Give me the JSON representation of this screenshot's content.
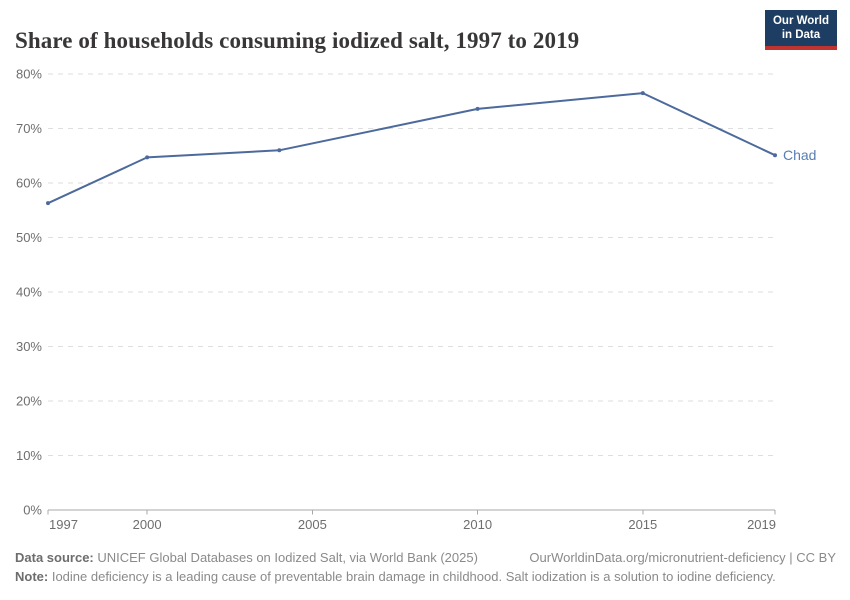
{
  "header": {
    "title": "Share of households consuming iodized salt, 1997 to 2019",
    "logo": {
      "line1": "Our World",
      "line2": "in Data"
    }
  },
  "chart_data": {
    "type": "line",
    "title": "Share of households consuming iodized salt, 1997 to 2019",
    "series": [
      {
        "name": "Chad",
        "x": [
          1997,
          2000,
          2004,
          2010,
          2015,
          2019
        ],
        "values": [
          56.3,
          64.7,
          66.0,
          73.6,
          76.5,
          65.1
        ]
      }
    ],
    "unit": "%",
    "xlim": [
      1997,
      2019
    ],
    "ylim": [
      0,
      80
    ],
    "yticks": [
      0,
      10,
      20,
      30,
      40,
      50,
      60,
      70,
      80
    ],
    "xticks": [
      1997,
      2000,
      2005,
      2010,
      2015,
      2019
    ],
    "grid": true,
    "legend_position": "end-of-line-label",
    "colors": {
      "line": "#4c6a9c",
      "series_label": "#577eb1",
      "gridline": "#dedede",
      "axis": "#a8a8a8",
      "tick_label": "#6e6e6e"
    }
  },
  "footer": {
    "datasource_label": "Data source:",
    "datasource_text": " UNICEF Global Databases on Iodized Salt, via World Bank (2025)",
    "link_text": "OurWorldinData.org/micronutrient-deficiency | CC BY",
    "note_label": "Note:",
    "note_text": " Iodine deficiency is a leading cause of preventable brain damage in childhood. Salt iodization is a solution to iodine deficiency."
  }
}
